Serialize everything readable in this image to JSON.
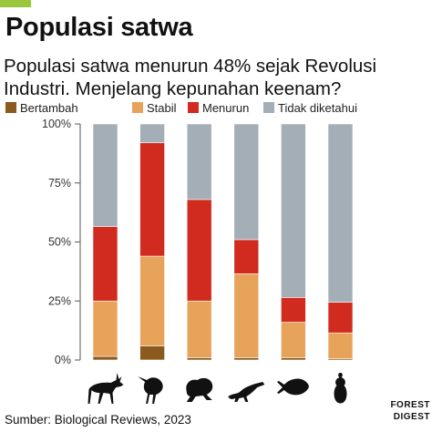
{
  "header": {
    "title": "Populasi satwa",
    "subtitle": "Populasi satwa menurun 48% sejak Revolusi Industri. Menjelang kepunahan keenam?"
  },
  "footer": {
    "source": "Sumber: Biological Reviews, 2023",
    "brand_line1": "FOREST",
    "brand_line2": "DIGEST"
  },
  "colors": {
    "Bertambah": "#8b5a1e",
    "Stabil": "#e8a35a",
    "Menurun": "#d12b20",
    "Tidak diketahui": "#a4aeb6"
  },
  "chart_data": {
    "type": "bar",
    "stacked": true,
    "categories": [
      "mammal-icon",
      "bird-icon",
      "amphibian-icon",
      "reptile-icon",
      "fish-icon",
      "insect-icon"
    ],
    "series": [
      {
        "name": "Bertambah",
        "values": [
          1.5,
          6,
          1,
          1,
          1,
          0.5
        ]
      },
      {
        "name": "Stabil",
        "values": [
          23.5,
          38,
          24,
          35.5,
          15,
          11
        ]
      },
      {
        "name": "Menurun",
        "values": [
          31.5,
          48,
          43,
          14.5,
          10.5,
          13
        ]
      },
      {
        "name": "Tidak diketahui",
        "values": [
          43.5,
          8,
          32,
          49,
          73.5,
          75.5
        ]
      }
    ],
    "yticks": [
      "0%",
      "25%",
      "50%",
      "75%",
      "100%"
    ],
    "ylim": [
      0,
      100
    ],
    "legend_position": "top",
    "grid": false
  }
}
